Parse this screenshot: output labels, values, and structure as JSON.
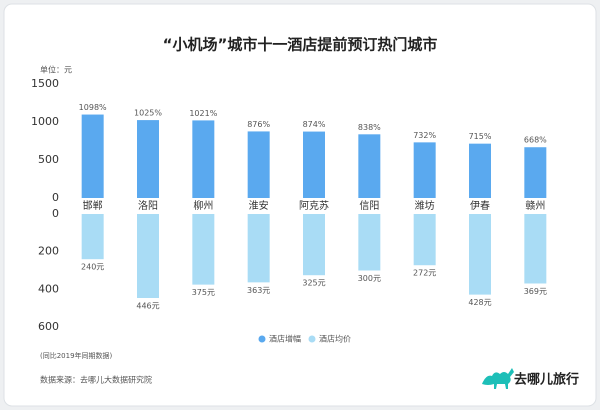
{
  "title": "“小机场”城市十一酒店提前预订热门城市",
  "unit": "单位：元",
  "note": "(同比2019年同期数据)",
  "source": "数据来源：去哪儿大数据研究院",
  "brand": "去哪儿旅行",
  "chart_data": {
    "type": "bar",
    "categories": [
      "邯郸",
      "洛阳",
      "柳州",
      "淮安",
      "阿克苏",
      "信阳",
      "潍坊",
      "伊春",
      "赣州"
    ],
    "series": [
      {
        "name": "酒店增幅",
        "color": "#5aa9ef",
        "values": [
          1098,
          1025,
          1021,
          876,
          874,
          838,
          732,
          715,
          668
        ],
        "value_labels": [
          "1098%",
          "1025%",
          "1021%",
          "876%",
          "874%",
          "838%",
          "732%",
          "715%",
          "668%"
        ]
      },
      {
        "name": "酒店均价",
        "color": "#a9dcf5",
        "axis": "y2",
        "values": [
          240,
          446,
          375,
          363,
          325,
          300,
          272,
          428,
          369
        ],
        "value_labels": [
          "240元",
          "446元",
          "375元",
          "363元",
          "325元",
          "300元",
          "272元",
          "428元",
          "369元"
        ]
      }
    ],
    "ylim": [
      0,
      1500
    ],
    "yticks": [
      0,
      500,
      1000,
      1500
    ],
    "y2lim": [
      0,
      600
    ],
    "y2ticks": [
      0,
      200,
      400,
      600
    ],
    "y2_inverted": true,
    "grid": false
  }
}
